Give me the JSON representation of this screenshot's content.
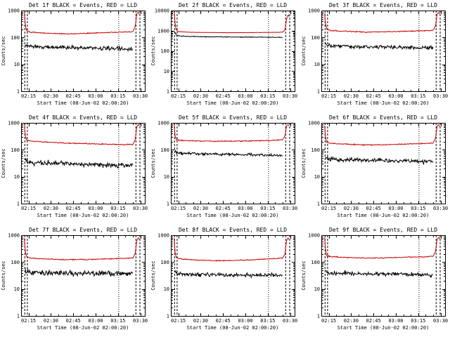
{
  "page": {
    "background": "#ffffff"
  },
  "shared": {
    "xlabel": "Start Time (08-Jun-02 02:00:20)",
    "ylabel": "Counts/sec",
    "legend_note": "BLACK = Events, RED = LLD",
    "x_tick_labels": [
      "02:15",
      "02:30",
      "02:45",
      "03:00",
      "03:15",
      "03:30"
    ],
    "x_tick_minutes": [
      15,
      30,
      45,
      60,
      75,
      90
    ],
    "x_minor_step_min": 5,
    "x_range_minutes": [
      10,
      93
    ],
    "colors": {
      "events": "#000000",
      "lld": "#cc0000"
    },
    "vlines": {
      "dashed_minutes": [
        12.5,
        14.2,
        87.0,
        89.7
      ],
      "dotted_minutes": [
        75.5
      ]
    }
  },
  "chart_data": [
    {
      "type": "line",
      "id": "det-1f",
      "title": "Det 1f BLACK = Events, RED = LLD",
      "ylim": [
        1,
        1000
      ],
      "y_tick_values": [
        1000,
        100,
        10,
        1
      ],
      "series": [
        {
          "name": "Events",
          "color": "#000000",
          "noise_dex": 0.05,
          "profile": [
            [
              12.8,
              60
            ],
            [
              13.6,
              50
            ],
            [
              16,
              46
            ],
            [
              25,
              44
            ],
            [
              40,
              42
            ],
            [
              55,
              41
            ],
            [
              70,
              39
            ],
            [
              80,
              38
            ],
            [
              85.2,
              37
            ]
          ]
        },
        {
          "name": "LLD",
          "color": "#cc0000",
          "noise_dex": 0.013,
          "profile": [
            [
              12.2,
              850
            ],
            [
              12.8,
              300
            ],
            [
              13.5,
              185
            ],
            [
              16,
              158
            ],
            [
              25,
              146
            ],
            [
              40,
              136
            ],
            [
              52,
              139
            ],
            [
              62,
              147
            ],
            [
              72,
              154
            ],
            [
              82,
              160
            ],
            [
              85,
              168
            ],
            [
              86.6,
              260
            ],
            [
              87.6,
              750
            ],
            [
              88.6,
              880
            ],
            [
              89.1,
              820
            ],
            [
              89.5,
              520
            ]
          ]
        }
      ]
    },
    {
      "type": "line",
      "id": "det-2f",
      "title": "Det 2f BLACK = Events, RED = LLD",
      "ylim": [
        1,
        10000
      ],
      "y_tick_values": [
        10000,
        1000,
        100,
        10,
        1
      ],
      "series": [
        {
          "name": "Events",
          "color": "#000000",
          "noise_dex": 0.012,
          "profile": [
            [
              12.8,
              820
            ],
            [
              13.6,
              620
            ],
            [
              16,
              540
            ],
            [
              30,
              505
            ],
            [
              50,
              490
            ],
            [
              70,
              480
            ],
            [
              80,
              472
            ],
            [
              85.2,
              465
            ]
          ]
        },
        {
          "name": "LLD",
          "color": "#cc0000",
          "noise_dex": 0.006,
          "profile": [
            [
              12.2,
              9000
            ],
            [
              12.8,
              2600
            ],
            [
              13.5,
              1150
            ],
            [
              15,
              900
            ],
            [
              25,
              830
            ],
            [
              40,
              805
            ],
            [
              55,
              800
            ],
            [
              70,
              815
            ],
            [
              82,
              835
            ],
            [
              85,
              850
            ],
            [
              86.6,
              1100
            ],
            [
              87.6,
              3800
            ],
            [
              88.6,
              6200
            ],
            [
              89.1,
              5800
            ],
            [
              89.5,
              3200
            ]
          ]
        }
      ]
    },
    {
      "type": "line",
      "id": "det-3f",
      "title": "Det 3f BLACK = Events, RED = LLD",
      "ylim": [
        1,
        1000
      ],
      "y_tick_values": [
        1000,
        100,
        10,
        1
      ],
      "series": [
        {
          "name": "Events",
          "color": "#000000",
          "noise_dex": 0.05,
          "profile": [
            [
              12.8,
              62
            ],
            [
              13.6,
              52
            ],
            [
              16,
              49
            ],
            [
              25,
              47
            ],
            [
              40,
              45
            ],
            [
              55,
              44
            ],
            [
              70,
              42
            ],
            [
              85.2,
              41
            ]
          ]
        },
        {
          "name": "LLD",
          "color": "#cc0000",
          "noise_dex": 0.013,
          "profile": [
            [
              12.2,
              800
            ],
            [
              12.8,
              320
            ],
            [
              13.5,
              205
            ],
            [
              16,
              182
            ],
            [
              25,
              170
            ],
            [
              40,
              158
            ],
            [
              55,
              163
            ],
            [
              68,
              172
            ],
            [
              80,
              178
            ],
            [
              85,
              184
            ],
            [
              86.6,
              270
            ],
            [
              87.6,
              720
            ],
            [
              88.6,
              850
            ],
            [
              89.1,
              800
            ],
            [
              89.5,
              540
            ]
          ]
        }
      ]
    },
    {
      "type": "line",
      "id": "det-4f",
      "title": "Det 4f BLACK = Events, RED = LLD",
      "ylim": [
        1,
        1000
      ],
      "y_tick_values": [
        1000,
        100,
        10,
        1
      ],
      "series": [
        {
          "name": "Events",
          "color": "#000000",
          "noise_dex": 0.06,
          "profile": [
            [
              12.8,
              42
            ],
            [
              13.6,
              36
            ],
            [
              16,
              34
            ],
            [
              25,
              32
            ],
            [
              40,
              30
            ],
            [
              55,
              28
            ],
            [
              70,
              27
            ],
            [
              80,
              26
            ],
            [
              85.2,
              26
            ]
          ]
        },
        {
          "name": "LLD",
          "color": "#cc0000",
          "noise_dex": 0.013,
          "profile": [
            [
              12.2,
              900
            ],
            [
              12.8,
              360
            ],
            [
              13.5,
              235
            ],
            [
              16,
              212
            ],
            [
              25,
              196
            ],
            [
              40,
              178
            ],
            [
              55,
              168
            ],
            [
              70,
              160
            ],
            [
              80,
              155
            ],
            [
              85,
              158
            ],
            [
              86.6,
              245
            ],
            [
              87.6,
              730
            ],
            [
              88.6,
              870
            ],
            [
              89.1,
              820
            ],
            [
              89.5,
              540
            ]
          ]
        }
      ]
    },
    {
      "type": "line",
      "id": "det-5f",
      "title": "Det 5f BLACK = Events, RED = LLD",
      "ylim": [
        1,
        1000
      ],
      "y_tick_values": [
        1000,
        100,
        10,
        1
      ],
      "series": [
        {
          "name": "Events",
          "color": "#000000",
          "noise_dex": 0.035,
          "profile": [
            [
              12.8,
              85
            ],
            [
              13.6,
              77
            ],
            [
              16,
              74
            ],
            [
              30,
              71
            ],
            [
              45,
              68
            ],
            [
              60,
              66
            ],
            [
              72,
              64
            ],
            [
              80,
              62
            ],
            [
              85.2,
              61
            ]
          ]
        },
        {
          "name": "LLD",
          "color": "#cc0000",
          "noise_dex": 0.013,
          "profile": [
            [
              12.2,
              880
            ],
            [
              12.8,
              340
            ],
            [
              13.5,
              245
            ],
            [
              16,
              226
            ],
            [
              25,
              215
            ],
            [
              40,
              206
            ],
            [
              55,
              209
            ],
            [
              68,
              216
            ],
            [
              78,
              223
            ],
            [
              85,
              238
            ],
            [
              86.6,
              330
            ],
            [
              87.6,
              780
            ],
            [
              88.6,
              900
            ],
            [
              89.1,
              850
            ],
            [
              89.5,
              580
            ]
          ]
        }
      ]
    },
    {
      "type": "line",
      "id": "det-6f",
      "title": "Det 6f BLACK = Events, RED = LLD",
      "ylim": [
        1,
        1000
      ],
      "y_tick_values": [
        1000,
        100,
        10,
        1
      ],
      "series": [
        {
          "name": "Events",
          "color": "#000000",
          "noise_dex": 0.05,
          "profile": [
            [
              12.8,
              58
            ],
            [
              13.6,
              48
            ],
            [
              16,
              45
            ],
            [
              25,
              43
            ],
            [
              40,
              41
            ],
            [
              55,
              40
            ],
            [
              70,
              38
            ],
            [
              85.2,
              37
            ]
          ]
        },
        {
          "name": "LLD",
          "color": "#cc0000",
          "noise_dex": 0.013,
          "profile": [
            [
              12.2,
              820
            ],
            [
              12.8,
              305
            ],
            [
              13.5,
              192
            ],
            [
              16,
              173
            ],
            [
              25,
              162
            ],
            [
              40,
              151
            ],
            [
              55,
              156
            ],
            [
              68,
              165
            ],
            [
              80,
              172
            ],
            [
              85,
              178
            ],
            [
              86.6,
              262
            ],
            [
              87.6,
              725
            ],
            [
              88.6,
              860
            ],
            [
              89.1,
              810
            ],
            [
              89.5,
              550
            ]
          ]
        }
      ]
    },
    {
      "type": "line",
      "id": "det-7f",
      "title": "Det 7f BLACK = Events, RED = LLD",
      "ylim": [
        1,
        1000
      ],
      "y_tick_values": [
        1000,
        100,
        10,
        1
      ],
      "series": [
        {
          "name": "Events",
          "color": "#000000",
          "noise_dex": 0.07,
          "profile": [
            [
              12.8,
              52
            ],
            [
              13.6,
              44
            ],
            [
              16,
              42
            ],
            [
              25,
              40
            ],
            [
              40,
              39
            ],
            [
              55,
              38
            ],
            [
              70,
              37
            ],
            [
              85.2,
              36
            ]
          ]
        },
        {
          "name": "LLD",
          "color": "#cc0000",
          "noise_dex": 0.013,
          "profile": [
            [
              12.2,
              780
            ],
            [
              12.8,
              265
            ],
            [
              13.5,
              162
            ],
            [
              16,
              142
            ],
            [
              25,
              131
            ],
            [
              40,
              123
            ],
            [
              55,
              126
            ],
            [
              68,
              132
            ],
            [
              80,
              138
            ],
            [
              85,
              143
            ],
            [
              86.6,
              215
            ],
            [
              87.6,
              660
            ],
            [
              88.6,
              800
            ],
            [
              89.1,
              760
            ],
            [
              89.5,
              500
            ]
          ]
        }
      ]
    },
    {
      "type": "line",
      "id": "det-8f",
      "title": "Det 8f BLACK = Events, RED = LLD",
      "ylim": [
        1,
        1000
      ],
      "y_tick_values": [
        1000,
        100,
        10,
        1
      ],
      "series": [
        {
          "name": "Events",
          "color": "#000000",
          "noise_dex": 0.05,
          "profile": [
            [
              12.8,
              44
            ],
            [
              13.6,
              38
            ],
            [
              16,
              36
            ],
            [
              25,
              35
            ],
            [
              40,
              34
            ],
            [
              55,
              33
            ],
            [
              70,
              33
            ],
            [
              85.2,
              32
            ]
          ]
        },
        {
          "name": "LLD",
          "color": "#cc0000",
          "noise_dex": 0.013,
          "profile": [
            [
              12.2,
              750
            ],
            [
              12.8,
              245
            ],
            [
              13.5,
              152
            ],
            [
              16,
              132
            ],
            [
              25,
              121
            ],
            [
              40,
              113
            ],
            [
              55,
              117
            ],
            [
              68,
              125
            ],
            [
              78,
              133
            ],
            [
              85,
              141
            ],
            [
              86.6,
              205
            ],
            [
              87.6,
              645
            ],
            [
              88.6,
              790
            ],
            [
              89.1,
              750
            ],
            [
              89.5,
              490
            ]
          ]
        }
      ]
    },
    {
      "type": "line",
      "id": "det-9f",
      "title": "Det 9f BLACK = Events, RED = LLD",
      "ylim": [
        1,
        1000
      ],
      "y_tick_values": [
        1000,
        100,
        10,
        1
      ],
      "series": [
        {
          "name": "Events",
          "color": "#000000",
          "noise_dex": 0.05,
          "profile": [
            [
              12.8,
              50
            ],
            [
              13.6,
              42
            ],
            [
              16,
              40
            ],
            [
              25,
              38
            ],
            [
              40,
              37
            ],
            [
              55,
              36
            ],
            [
              70,
              35
            ],
            [
              85.2,
              34
            ]
          ]
        },
        {
          "name": "LLD",
          "color": "#cc0000",
          "noise_dex": 0.013,
          "profile": [
            [
              12.2,
              820
            ],
            [
              12.8,
              285
            ],
            [
              13.5,
              178
            ],
            [
              16,
              160
            ],
            [
              25,
              151
            ],
            [
              40,
              141
            ],
            [
              55,
              145
            ],
            [
              68,
              153
            ],
            [
              80,
              158
            ],
            [
              85,
              165
            ],
            [
              86.6,
              248
            ],
            [
              87.6,
              705
            ],
            [
              88.6,
              845
            ],
            [
              89.1,
              795
            ],
            [
              89.5,
              535
            ]
          ]
        }
      ]
    }
  ]
}
